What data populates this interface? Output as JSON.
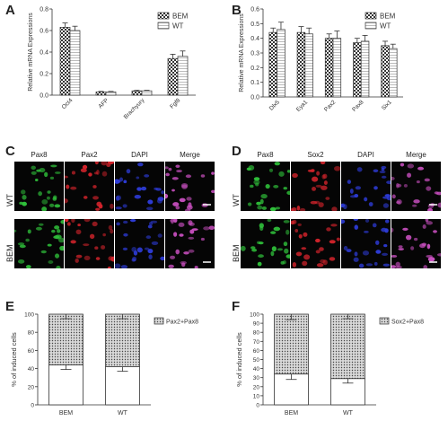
{
  "panels": {
    "A": {
      "label": "A"
    },
    "B": {
      "label": "B"
    },
    "C": {
      "label": "C",
      "columns": [
        "Pax8",
        "Pax2",
        "DAPI",
        "Merge"
      ],
      "rows": [
        "WT",
        "BEM"
      ]
    },
    "D": {
      "label": "D",
      "columns": [
        "Pax8",
        "Sox2",
        "DAPI",
        "Merge"
      ],
      "rows": [
        "WT",
        "BEM"
      ]
    },
    "E": {
      "label": "E"
    },
    "F": {
      "label": "F"
    }
  },
  "colors": {
    "green": "#2fbf3a",
    "red": "#d1232b",
    "blue": "#2d3bd6",
    "merge": "#c84fbf"
  },
  "chart_data": [
    {
      "id": "A",
      "type": "bar",
      "ylabel": "Relative mRNA Expressions",
      "categories": [
        "Oct4",
        "AFP",
        "Brachyury",
        "Fgf8"
      ],
      "ylim": [
        0,
        0.8
      ],
      "yticks": [
        "0.0",
        "0.2",
        "0.4",
        "0.6",
        "0.8"
      ],
      "legend": "top-right",
      "series": [
        {
          "name": "BEM",
          "values": [
            0.63,
            0.03,
            0.04,
            0.34
          ],
          "errors": [
            0.04,
            0.005,
            0.005,
            0.04
          ]
        },
        {
          "name": "WT",
          "values": [
            0.6,
            0.03,
            0.04,
            0.36
          ],
          "errors": [
            0.04,
            0.005,
            0.005,
            0.05
          ]
        }
      ]
    },
    {
      "id": "B",
      "type": "bar",
      "ylabel": "Relative mRNA Expressions",
      "categories": [
        "Dlx5",
        "Eya1",
        "Pax2",
        "Pax8",
        "Six1"
      ],
      "ylim": [
        0,
        0.6
      ],
      "yticks": [
        "0.0",
        "0.1",
        "0.2",
        "0.3",
        "0.4",
        "0.5",
        "0.6"
      ],
      "legend": "top-right",
      "series": [
        {
          "name": "BEM",
          "values": [
            0.44,
            0.44,
            0.4,
            0.37,
            0.35
          ],
          "errors": [
            0.03,
            0.04,
            0.03,
            0.03,
            0.03
          ]
        },
        {
          "name": "WT",
          "values": [
            0.46,
            0.43,
            0.4,
            0.38,
            0.33
          ],
          "errors": [
            0.05,
            0.04,
            0.05,
            0.04,
            0.03
          ]
        }
      ]
    },
    {
      "id": "E",
      "type": "bar",
      "stacked": true,
      "ylabel": "% of induced cells",
      "categories": [
        "BEM",
        "WT"
      ],
      "ylim": [
        0,
        100
      ],
      "yticks": [
        "0",
        "20",
        "40",
        "60",
        "80",
        "100"
      ],
      "legend": "top-right",
      "series": [
        {
          "name": "",
          "values": [
            44,
            42
          ],
          "errors": [
            5,
            5
          ]
        },
        {
          "name": "Pax2+Pax8",
          "values": [
            56,
            58
          ],
          "errors": [
            5,
            5
          ]
        }
      ]
    },
    {
      "id": "F",
      "type": "bar",
      "stacked": true,
      "ylabel": "% of induced cells",
      "categories": [
        "BEM",
        "WT"
      ],
      "ylim": [
        0,
        100
      ],
      "yticks": [
        "0",
        "10",
        "20",
        "30",
        "40",
        "50",
        "60",
        "70",
        "80",
        "90",
        "100"
      ],
      "legend": "top-right",
      "series": [
        {
          "name": "",
          "values": [
            34,
            29
          ],
          "errors": [
            6,
            5
          ]
        },
        {
          "name": "Sox2+Pax8",
          "values": [
            66,
            71
          ],
          "errors": [
            6,
            5
          ]
        }
      ]
    }
  ]
}
